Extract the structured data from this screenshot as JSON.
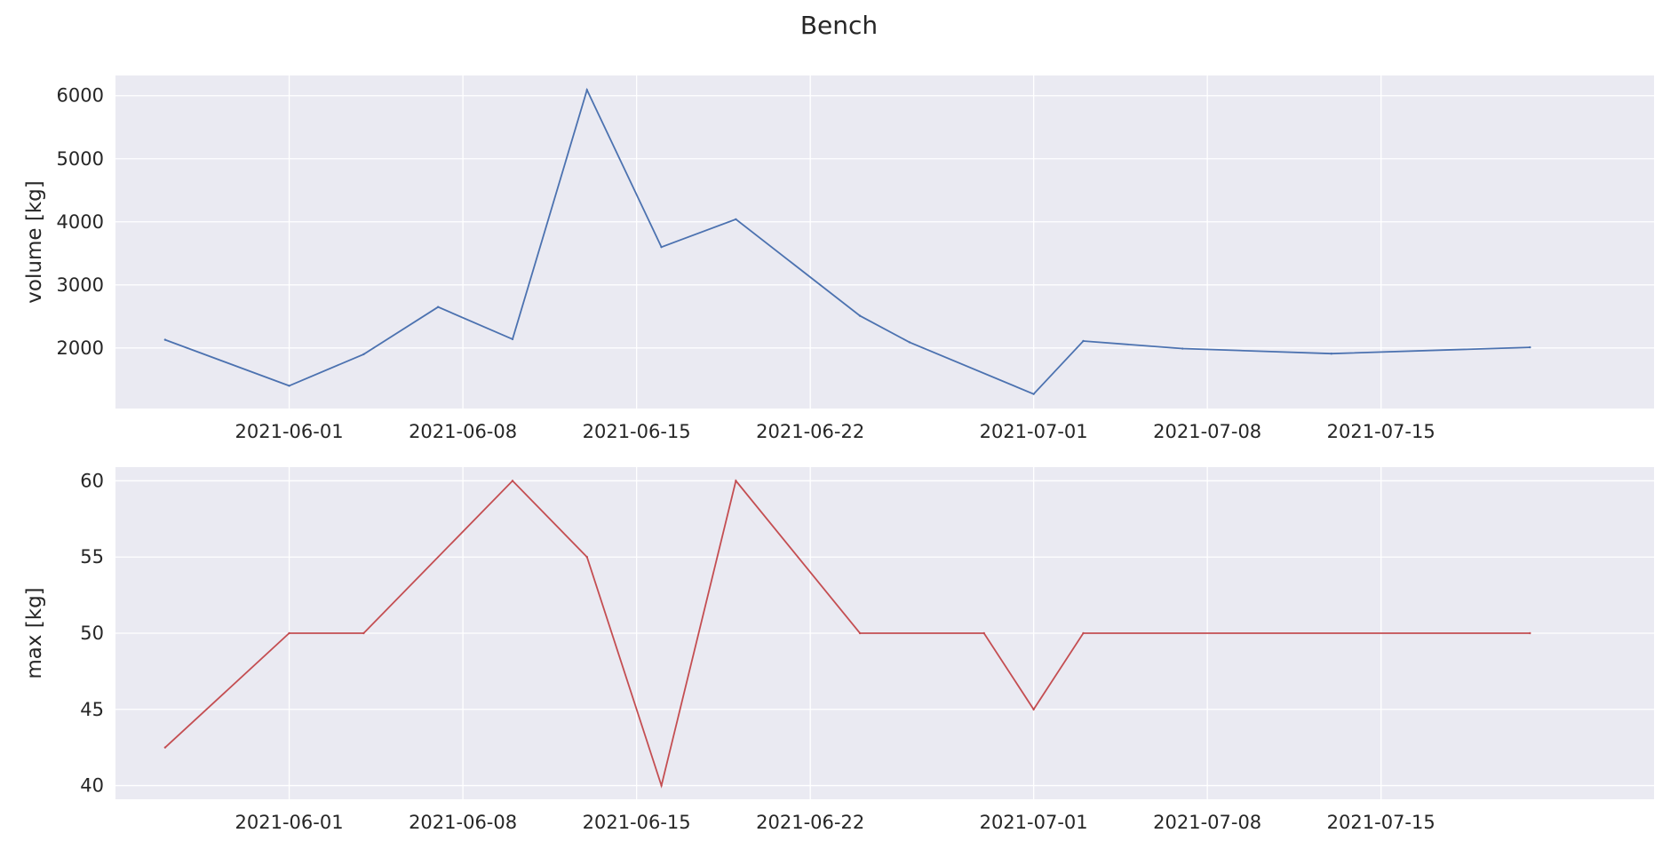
{
  "title": "Bench",
  "chart_data": [
    {
      "type": "line",
      "title": "",
      "xlabel": "",
      "ylabel": "volume [kg]",
      "xlim": [
        "2021-05-25",
        "2021-07-26"
      ],
      "ylim": [
        1040,
        6320
      ],
      "xticks": [
        "2021-06-01",
        "2021-06-08",
        "2021-06-15",
        "2021-06-22",
        "2021-07-01",
        "2021-07-08",
        "2021-07-15"
      ],
      "yticks": [
        2000,
        3000,
        4000,
        5000,
        6000
      ],
      "grid": true,
      "series": [
        {
          "color": "#4c72b0",
          "x": [
            "2021-05-27",
            "2021-06-01",
            "2021-06-04",
            "2021-06-07",
            "2021-06-10",
            "2021-06-13",
            "2021-06-16",
            "2021-06-19",
            "2021-06-24",
            "2021-06-26",
            "2021-07-01",
            "2021-07-03",
            "2021-07-07",
            "2021-07-13",
            "2021-07-21"
          ],
          "values": [
            2130,
            1400,
            1900,
            2650,
            2140,
            6090,
            3600,
            4040,
            2510,
            2090,
            1270,
            2110,
            1990,
            1910,
            2010
          ]
        }
      ]
    },
    {
      "type": "line",
      "title": "",
      "xlabel": "",
      "ylabel": "max [kg]",
      "xlim": [
        "2021-05-25",
        "2021-07-26"
      ],
      "ylim": [
        39.1,
        60.9
      ],
      "xticks": [
        "2021-06-01",
        "2021-06-08",
        "2021-06-15",
        "2021-06-22",
        "2021-07-01",
        "2021-07-08",
        "2021-07-15"
      ],
      "yticks": [
        40,
        45,
        50,
        55,
        60
      ],
      "grid": true,
      "series": [
        {
          "color": "#c44e52",
          "x": [
            "2021-05-27",
            "2021-06-01",
            "2021-06-04",
            "2021-06-10",
            "2021-06-13",
            "2021-06-16",
            "2021-06-19",
            "2021-06-24",
            "2021-06-29",
            "2021-07-01",
            "2021-07-03",
            "2021-07-21"
          ],
          "values": [
            42.5,
            50,
            50,
            60,
            55,
            40,
            60,
            50,
            50,
            45,
            50,
            50
          ]
        }
      ]
    }
  ]
}
